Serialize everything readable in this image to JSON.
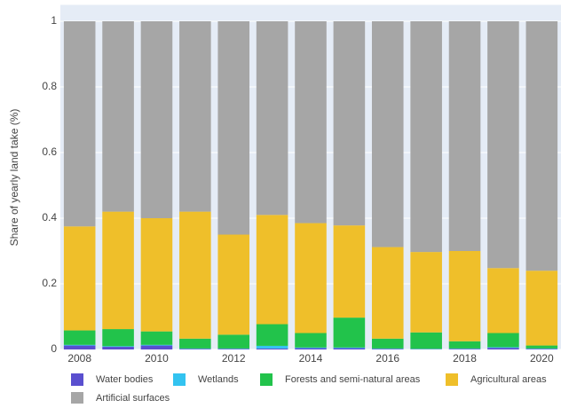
{
  "chart_data": {
    "type": "bar",
    "stacked": true,
    "y_axis_label": "Share of yearly land take (%)",
    "x": [
      2008,
      2009,
      2010,
      2011,
      2012,
      2013,
      2014,
      2015,
      2016,
      2017,
      2018,
      2019,
      2020
    ],
    "xlim": [
      2007.5,
      2020.5
    ],
    "xticks": [
      2008,
      2010,
      2012,
      2014,
      2016,
      2018,
      2020
    ],
    "ylim": [
      0,
      1.05
    ],
    "yticks": [
      0,
      0.2,
      0.4,
      0.6,
      0.8,
      1
    ],
    "grid": true,
    "legend": "bottom",
    "series": [
      {
        "name": "Water bodies",
        "color": "#5a4fcf",
        "values": [
          0.012,
          0.008,
          0.012,
          0.002,
          0.002,
          0.003,
          0.004,
          0.004,
          0.002,
          0.001,
          0.002,
          0.005,
          0.002
        ]
      },
      {
        "name": "Wetlands",
        "color": "#33c3f0",
        "values": [
          0.002,
          0.002,
          0.002,
          0.001,
          0.001,
          0.008,
          0.002,
          0.002,
          0.001,
          0.001,
          0.001,
          0.002,
          0.001
        ]
      },
      {
        "name": "Forests and semi-natural areas",
        "color": "#22c34b",
        "values": [
          0.044,
          0.052,
          0.041,
          0.03,
          0.042,
          0.066,
          0.044,
          0.091,
          0.03,
          0.05,
          0.022,
          0.043,
          0.009
        ]
      },
      {
        "name": "Agricultural areas",
        "color": "#efbf2a",
        "values": [
          0.317,
          0.358,
          0.345,
          0.387,
          0.305,
          0.333,
          0.335,
          0.281,
          0.279,
          0.245,
          0.275,
          0.198,
          0.228
        ]
      },
      {
        "name": "Artificial surfaces",
        "color": "#a6a6a6",
        "values": [
          0.625,
          0.58,
          0.6,
          0.58,
          0.65,
          0.59,
          0.615,
          0.622,
          0.688,
          0.703,
          0.7,
          0.752,
          0.76
        ]
      }
    ]
  }
}
